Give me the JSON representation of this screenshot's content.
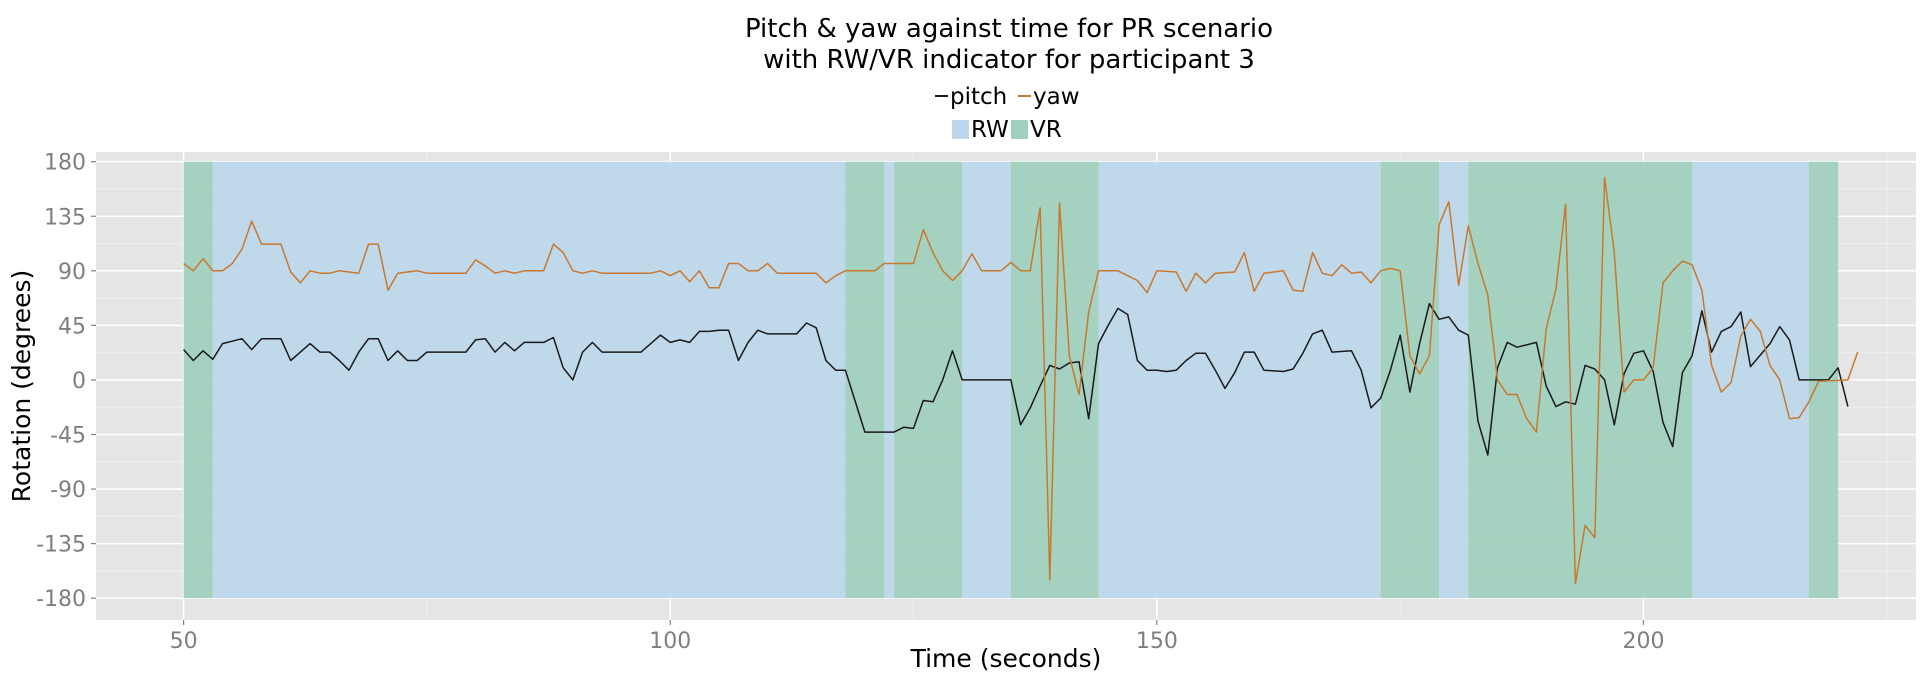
{
  "chart_data": {
    "type": "line",
    "title_line1": "Pitch & yaw against time for PR scenario",
    "title_line2": "with RW/VR indicator for participant 3",
    "xlabel": "Time (seconds)",
    "ylabel": "Rotation (degrees)",
    "xlim": [
      41,
      228
    ],
    "ylim": [
      -198,
      188
    ],
    "x_ticks": [
      50,
      100,
      150,
      200
    ],
    "x_tick_labels": [
      "50",
      "100",
      "150",
      "200"
    ],
    "y_ticks": [
      -180,
      -135,
      -90,
      -45,
      0,
      45,
      90,
      135,
      180
    ],
    "y_tick_labels": [
      "-180",
      "-135",
      "-90",
      "-45",
      "0",
      "45",
      "90",
      "135",
      "180"
    ],
    "grid": true,
    "legend_lines": [
      {
        "name": "pitch",
        "color": "#1a1a1a"
      },
      {
        "name": "yaw",
        "color": "#c8782f"
      }
    ],
    "legend_fills": [
      {
        "name": "RW",
        "color": "#bcd7ea"
      },
      {
        "name": "VR",
        "color": "#9fcfbd"
      }
    ],
    "legend_position": "top",
    "background_color": "#e5e5e5",
    "indicator": {
      "y_range": [
        -180,
        180
      ],
      "segments": [
        {
          "state": "VR",
          "start": 50,
          "end": 53
        },
        {
          "state": "RW",
          "start": 53,
          "end": 118
        },
        {
          "state": "VR",
          "start": 118,
          "end": 122
        },
        {
          "state": "RW",
          "start": 122,
          "end": 123
        },
        {
          "state": "VR",
          "start": 123,
          "end": 130
        },
        {
          "state": "RW",
          "start": 130,
          "end": 135
        },
        {
          "state": "VR",
          "start": 135,
          "end": 144
        },
        {
          "state": "RW",
          "start": 144,
          "end": 173
        },
        {
          "state": "VR",
          "start": 173,
          "end": 179
        },
        {
          "state": "RW",
          "start": 179,
          "end": 182
        },
        {
          "state": "VR",
          "start": 182,
          "end": 205
        },
        {
          "state": "RW",
          "start": 205,
          "end": 217
        },
        {
          "state": "VR",
          "start": 217,
          "end": 220
        }
      ]
    },
    "series": [
      {
        "name": "pitch",
        "color": "#1a1a1a",
        "points": [
          [
            50,
            25
          ],
          [
            51,
            16
          ],
          [
            52,
            24
          ],
          [
            53,
            17
          ],
          [
            54,
            30
          ],
          [
            56,
            34
          ],
          [
            57,
            25
          ],
          [
            58,
            34
          ],
          [
            60,
            34
          ],
          [
            61,
            16
          ],
          [
            62,
            23
          ],
          [
            63,
            30
          ],
          [
            64,
            23
          ],
          [
            65,
            23
          ],
          [
            66,
            16
          ],
          [
            67,
            8
          ],
          [
            68,
            23
          ],
          [
            69,
            34
          ],
          [
            70,
            34
          ],
          [
            71,
            16
          ],
          [
            72,
            24
          ],
          [
            73,
            16
          ],
          [
            74,
            16
          ],
          [
            75,
            23
          ],
          [
            79,
            23
          ],
          [
            80,
            33
          ],
          [
            81,
            34
          ],
          [
            82,
            23
          ],
          [
            83,
            31
          ],
          [
            84,
            24
          ],
          [
            85,
            31
          ],
          [
            87,
            31
          ],
          [
            88,
            35
          ],
          [
            89,
            10
          ],
          [
            90,
            0
          ],
          [
            91,
            23
          ],
          [
            92,
            31
          ],
          [
            93,
            23
          ],
          [
            97,
            23
          ],
          [
            98,
            30
          ],
          [
            99,
            37
          ],
          [
            100,
            31
          ],
          [
            101,
            33
          ],
          [
            102,
            31
          ],
          [
            103,
            40
          ],
          [
            104,
            40
          ],
          [
            105,
            41
          ],
          [
            106,
            41
          ],
          [
            107,
            16
          ],
          [
            108,
            31
          ],
          [
            109,
            41
          ],
          [
            110,
            38
          ],
          [
            113,
            38
          ],
          [
            114,
            47
          ],
          [
            115,
            43
          ],
          [
            116,
            16
          ],
          [
            117,
            8
          ],
          [
            118,
            8
          ],
          [
            120,
            -43
          ],
          [
            123,
            -43
          ],
          [
            124,
            -39
          ],
          [
            125,
            -40
          ],
          [
            126,
            -17
          ],
          [
            127,
            -18
          ],
          [
            128,
            0
          ],
          [
            129,
            24
          ],
          [
            130,
            0
          ],
          [
            135,
            0
          ],
          [
            136,
            -37
          ],
          [
            137,
            -23
          ],
          [
            138,
            -5
          ],
          [
            139,
            12
          ],
          [
            140,
            9
          ],
          [
            141,
            14
          ],
          [
            142,
            15
          ],
          [
            143,
            -32
          ],
          [
            144,
            30
          ],
          [
            145,
            45
          ],
          [
            146,
            59
          ],
          [
            147,
            54
          ],
          [
            148,
            16
          ],
          [
            149,
            8
          ],
          [
            150,
            8
          ],
          [
            151,
            7
          ],
          [
            152,
            8
          ],
          [
            153,
            16
          ],
          [
            154,
            22
          ],
          [
            155,
            22
          ],
          [
            156,
            8
          ],
          [
            157,
            -7
          ],
          [
            158,
            6
          ],
          [
            159,
            23
          ],
          [
            160,
            23
          ],
          [
            161,
            8
          ],
          [
            163,
            7
          ],
          [
            164,
            9
          ],
          [
            165,
            22
          ],
          [
            166,
            38
          ],
          [
            167,
            41
          ],
          [
            168,
            23
          ],
          [
            170,
            24
          ],
          [
            171,
            8
          ],
          [
            172,
            -23
          ],
          [
            173,
            -15
          ],
          [
            174,
            8
          ],
          [
            175,
            37
          ],
          [
            176,
            -10
          ],
          [
            177,
            30
          ],
          [
            178,
            63
          ],
          [
            179,
            50
          ],
          [
            180,
            52
          ],
          [
            181,
            41
          ],
          [
            182,
            37
          ],
          [
            183,
            -34
          ],
          [
            184,
            -62
          ],
          [
            185,
            10
          ],
          [
            186,
            31
          ],
          [
            187,
            27
          ],
          [
            189,
            31
          ],
          [
            190,
            -5
          ],
          [
            191,
            -22
          ],
          [
            192,
            -18
          ],
          [
            193,
            -20
          ],
          [
            194,
            12
          ],
          [
            195,
            9
          ],
          [
            196,
            0
          ],
          [
            197,
            -37
          ],
          [
            198,
            5
          ],
          [
            199,
            22
          ],
          [
            200,
            24
          ],
          [
            201,
            7
          ],
          [
            202,
            -35
          ],
          [
            203,
            -55
          ],
          [
            204,
            6
          ],
          [
            205,
            20
          ],
          [
            206,
            57
          ],
          [
            207,
            23
          ],
          [
            208,
            40
          ],
          [
            209,
            44
          ],
          [
            210,
            56
          ],
          [
            211,
            11
          ],
          [
            213,
            30
          ],
          [
            214,
            44
          ],
          [
            215,
            33
          ],
          [
            216,
            0
          ],
          [
            219,
            0
          ],
          [
            220,
            10
          ],
          [
            221,
            -22
          ]
        ]
      },
      {
        "name": "yaw",
        "color": "#c8782f",
        "points": [
          [
            50,
            96
          ],
          [
            51,
            90
          ],
          [
            52,
            100
          ],
          [
            53,
            90
          ],
          [
            54,
            90
          ],
          [
            55,
            96
          ],
          [
            56,
            108
          ],
          [
            57,
            131
          ],
          [
            58,
            112
          ],
          [
            60,
            112
          ],
          [
            61,
            89
          ],
          [
            62,
            80
          ],
          [
            63,
            90
          ],
          [
            64,
            88
          ],
          [
            65,
            88
          ],
          [
            66,
            90
          ],
          [
            68,
            88
          ],
          [
            69,
            112
          ],
          [
            70,
            112
          ],
          [
            71,
            74
          ],
          [
            72,
            88
          ],
          [
            73,
            89
          ],
          [
            74,
            90
          ],
          [
            75,
            88
          ],
          [
            79,
            88
          ],
          [
            80,
            99
          ],
          [
            81,
            94
          ],
          [
            82,
            88
          ],
          [
            83,
            90
          ],
          [
            84,
            88
          ],
          [
            85,
            90
          ],
          [
            87,
            90
          ],
          [
            88,
            112
          ],
          [
            89,
            105
          ],
          [
            90,
            90
          ],
          [
            91,
            88
          ],
          [
            92,
            90
          ],
          [
            93,
            88
          ],
          [
            98,
            88
          ],
          [
            99,
            90
          ],
          [
            100,
            86
          ],
          [
            101,
            90
          ],
          [
            102,
            81
          ],
          [
            103,
            90
          ],
          [
            104,
            76
          ],
          [
            105,
            76
          ],
          [
            106,
            96
          ],
          [
            107,
            96
          ],
          [
            108,
            90
          ],
          [
            109,
            90
          ],
          [
            110,
            96
          ],
          [
            111,
            88
          ],
          [
            115,
            88
          ],
          [
            116,
            80
          ],
          [
            117,
            86
          ],
          [
            118,
            90
          ],
          [
            121,
            90
          ],
          [
            122,
            96
          ],
          [
            125,
            96
          ],
          [
            126,
            124
          ],
          [
            127,
            105
          ],
          [
            128,
            90
          ],
          [
            129,
            82
          ],
          [
            130,
            90
          ],
          [
            131,
            104
          ],
          [
            132,
            90
          ],
          [
            134,
            90
          ],
          [
            135,
            97
          ],
          [
            136,
            90
          ],
          [
            137,
            90
          ],
          [
            138,
            142
          ],
          [
            139,
            -165
          ],
          [
            140,
            146
          ],
          [
            141,
            20
          ],
          [
            142,
            -12
          ],
          [
            143,
            56
          ],
          [
            144,
            90
          ],
          [
            146,
            90
          ],
          [
            147,
            86
          ],
          [
            148,
            82
          ],
          [
            149,
            72
          ],
          [
            150,
            90
          ],
          [
            152,
            89
          ],
          [
            153,
            73
          ],
          [
            154,
            88
          ],
          [
            155,
            80
          ],
          [
            156,
            88
          ],
          [
            158,
            89
          ],
          [
            159,
            105
          ],
          [
            160,
            73
          ],
          [
            161,
            88
          ],
          [
            163,
            90
          ],
          [
            164,
            74
          ],
          [
            165,
            73
          ],
          [
            166,
            105
          ],
          [
            167,
            88
          ],
          [
            168,
            86
          ],
          [
            169,
            95
          ],
          [
            170,
            88
          ],
          [
            171,
            89
          ],
          [
            172,
            80
          ],
          [
            173,
            90
          ],
          [
            174,
            92
          ],
          [
            175,
            90
          ],
          [
            176,
            20
          ],
          [
            177,
            5
          ],
          [
            178,
            20
          ],
          [
            179,
            128
          ],
          [
            180,
            147
          ],
          [
            181,
            78
          ],
          [
            182,
            127
          ],
          [
            183,
            96
          ],
          [
            184,
            70
          ],
          [
            185,
            0
          ],
          [
            186,
            -12
          ],
          [
            187,
            -12
          ],
          [
            188,
            -32
          ],
          [
            189,
            -43
          ],
          [
            190,
            42
          ],
          [
            191,
            75
          ],
          [
            192,
            145
          ],
          [
            193,
            -168
          ],
          [
            194,
            -120
          ],
          [
            195,
            -130
          ],
          [
            196,
            167
          ],
          [
            197,
            105
          ],
          [
            198,
            -10
          ],
          [
            199,
            0
          ],
          [
            200,
            0
          ],
          [
            201,
            10
          ],
          [
            202,
            80
          ],
          [
            203,
            90
          ],
          [
            204,
            98
          ],
          [
            205,
            95
          ],
          [
            206,
            74
          ],
          [
            207,
            12
          ],
          [
            208,
            -10
          ],
          [
            209,
            -2
          ],
          [
            210,
            36
          ],
          [
            211,
            50
          ],
          [
            212,
            40
          ],
          [
            213,
            12
          ],
          [
            214,
            0
          ],
          [
            215,
            -32
          ],
          [
            216,
            -31
          ],
          [
            217,
            -18
          ],
          [
            218,
            -1
          ],
          [
            221,
            0
          ],
          [
            222,
            23
          ]
        ]
      }
    ]
  }
}
